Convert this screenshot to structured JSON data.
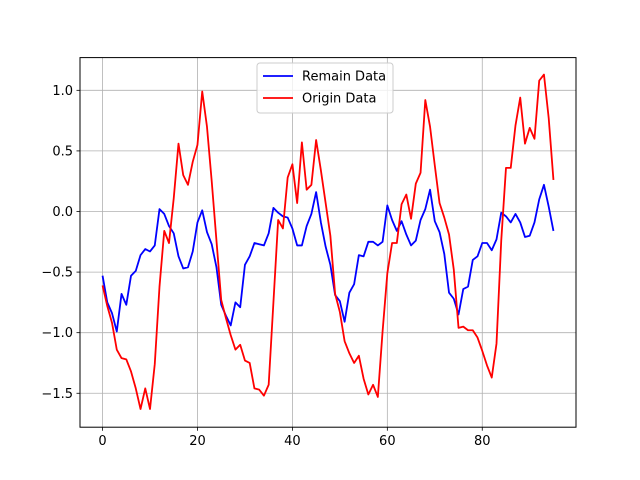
{
  "chart_data": {
    "type": "line",
    "title": "",
    "xlabel": "",
    "ylabel": "",
    "xlim": [
      -4.75,
      99.75
    ],
    "ylim": [
      -1.78,
      1.27
    ],
    "grid": true,
    "legend_position": "upper center",
    "x_ticks": [
      0,
      20,
      40,
      60,
      80
    ],
    "x_tick_labels": [
      "0",
      "20",
      "40",
      "60",
      "80"
    ],
    "y_ticks": [
      -1.5,
      -1.0,
      -0.5,
      0.0,
      0.5,
      1.0
    ],
    "y_tick_labels": [
      "−1.5",
      "−1.0",
      "−0.5",
      "0.0",
      "0.5",
      "1.0"
    ],
    "series": [
      {
        "name": "Remain Data",
        "color": "#0000ff",
        "values": [
          -0.53,
          -0.75,
          -0.84,
          -0.99,
          -0.68,
          -0.77,
          -0.53,
          -0.49,
          -0.36,
          -0.31,
          -0.33,
          -0.28,
          0.02,
          -0.02,
          -0.12,
          -0.18,
          -0.37,
          -0.47,
          -0.46,
          -0.33,
          -0.09,
          0.01,
          -0.17,
          -0.27,
          -0.46,
          -0.77,
          -0.86,
          -0.94,
          -0.75,
          -0.79,
          -0.44,
          -0.37,
          -0.26,
          -0.27,
          -0.28,
          -0.18,
          0.03,
          -0.01,
          -0.04,
          -0.05,
          -0.14,
          -0.28,
          -0.28,
          -0.12,
          -0.02,
          0.16,
          -0.09,
          -0.29,
          -0.44,
          -0.69,
          -0.74,
          -0.91,
          -0.67,
          -0.6,
          -0.36,
          -0.37,
          -0.25,
          -0.25,
          -0.28,
          -0.25,
          0.05,
          -0.07,
          -0.16,
          -0.08,
          -0.19,
          -0.28,
          -0.24,
          -0.07,
          0.02,
          0.18,
          -0.08,
          -0.17,
          -0.35,
          -0.67,
          -0.72,
          -0.85,
          -0.64,
          -0.62,
          -0.4,
          -0.37,
          -0.26,
          -0.26,
          -0.32,
          -0.23,
          -0.01,
          -0.04,
          -0.09,
          -0.02,
          -0.09,
          -0.21,
          -0.2,
          -0.09,
          0.1,
          0.22,
          0.04,
          -0.16
        ]
      },
      {
        "name": "Origin Data",
        "color": "#ff0000",
        "values": [
          -0.61,
          -0.78,
          -0.92,
          -1.14,
          -1.21,
          -1.22,
          -1.32,
          -1.46,
          -1.63,
          -1.46,
          -1.63,
          -1.26,
          -0.62,
          -0.16,
          -0.26,
          0.11,
          0.56,
          0.3,
          0.22,
          0.41,
          0.55,
          0.99,
          0.7,
          0.25,
          -0.24,
          -0.73,
          -0.88,
          -1.02,
          -1.14,
          -1.1,
          -1.23,
          -1.25,
          -1.46,
          -1.47,
          -1.52,
          -1.43,
          -0.75,
          -0.07,
          -0.14,
          0.28,
          0.39,
          0.07,
          0.57,
          0.18,
          0.22,
          0.59,
          0.34,
          0.07,
          -0.2,
          -0.68,
          -0.83,
          -1.07,
          -1.17,
          -1.25,
          -1.19,
          -1.38,
          -1.51,
          -1.43,
          -1.53,
          -0.99,
          -0.51,
          -0.26,
          -0.26,
          0.06,
          0.14,
          -0.06,
          0.23,
          0.32,
          0.92,
          0.7,
          0.38,
          0.07,
          -0.05,
          -0.19,
          -0.48,
          -0.96,
          -0.95,
          -0.98,
          -0.98,
          -1.04,
          -1.15,
          -1.27,
          -1.37,
          -1.09,
          -0.24,
          0.36,
          0.36,
          0.71,
          0.94,
          0.56,
          0.69,
          0.6,
          1.08,
          1.13,
          0.77,
          0.26
        ]
      }
    ]
  }
}
